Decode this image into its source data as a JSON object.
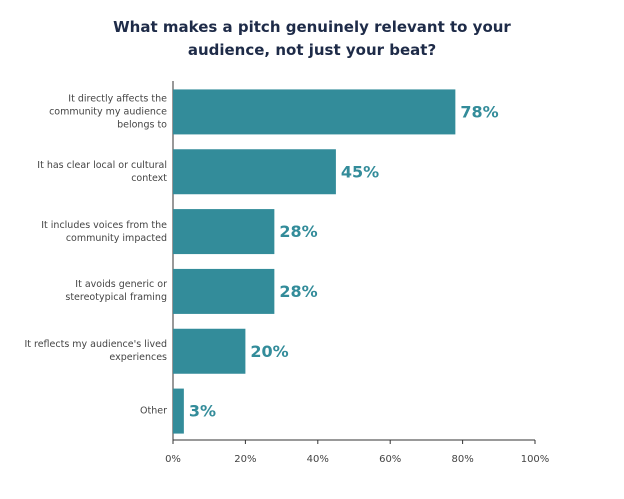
{
  "chart_data": {
    "type": "barh",
    "title": "What makes a pitch genuinely relevant to your audience, not just your beat?",
    "categories": [
      "It directly affects the community my audience belongs to",
      "It has clear local or cultural context",
      "It includes voices from the community impacted",
      "It avoids generic or stereotypical framing",
      "It reflects my audience's lived experiences",
      "Other"
    ],
    "values": [
      78,
      45,
      28,
      28,
      20,
      3
    ],
    "value_labels": [
      "78%",
      "45%",
      "28%",
      "28%",
      "20%",
      "3%"
    ],
    "color": "#338c9a",
    "xlim": [
      0,
      100
    ],
    "xticks": [
      {
        "value": 0,
        "label": "0%"
      },
      {
        "value": 20,
        "label": "20%"
      },
      {
        "value": 40,
        "label": "40%"
      },
      {
        "value": 60,
        "label": "60%"
      },
      {
        "value": 80,
        "label": "80%"
      },
      {
        "value": 100,
        "label": "100%"
      }
    ]
  }
}
